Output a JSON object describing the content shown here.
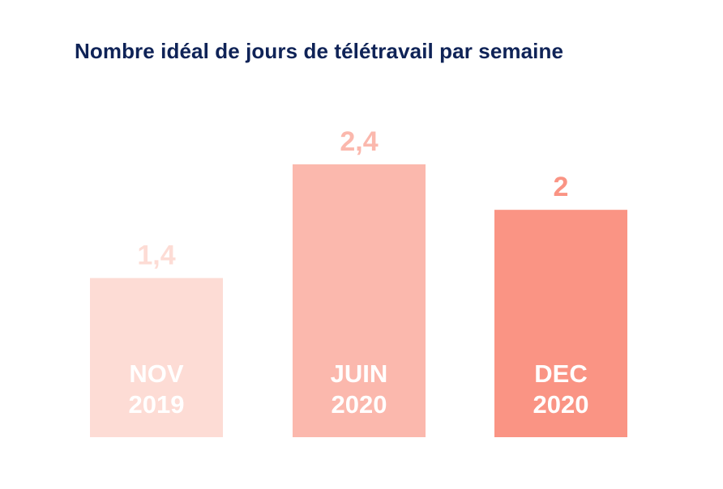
{
  "chart_data": {
    "type": "bar",
    "title": "Nombre idéal de jours de télétravail par semaine",
    "categories": [
      [
        "NOV",
        "2019"
      ],
      [
        "JUIN",
        "2020"
      ],
      [
        "DEC",
        "2020"
      ]
    ],
    "values": [
      1.4,
      2.4,
      2
    ],
    "value_labels": [
      "1,4",
      "2,4",
      "2"
    ],
    "colors": [
      "#fddcd5",
      "#fbb8ad",
      "#fa9484"
    ],
    "category_label_color": "#ffffff",
    "ylim": [
      0,
      2.4
    ],
    "grid": false,
    "legend": "none"
  }
}
